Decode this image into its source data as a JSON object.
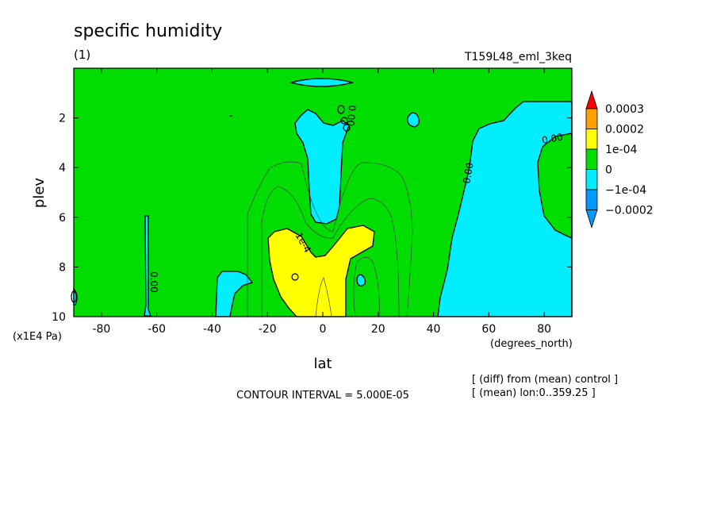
{
  "title": "specific humidity",
  "panel_label": "(1)",
  "experiment": "T159L48_eml_3keq",
  "contour_interval": "CONTOUR INTERVAL = 5.000E-05",
  "notes": [
    "[ (diff) from (mean) control ]",
    "[ (mean) lon:0..359.25 ]"
  ],
  "contour_labels": [
    "0.00",
    "0.00",
    "0.00",
    "0.00",
    "1e-4"
  ],
  "colors": {
    "green": "#00dd00",
    "cyan": "#00eeff",
    "yellow": "#ffff00",
    "orange": "#ffa000",
    "red": "#ff0000",
    "blue": "#0099ff"
  },
  "chart_data": {
    "type": "heatmap",
    "x": {
      "label": "lat",
      "unit": "(degrees_north)",
      "range": [
        -90,
        90
      ],
      "ticks": [
        -80,
        -60,
        -40,
        -20,
        0,
        20,
        40,
        60,
        80
      ]
    },
    "y": {
      "label": "plev",
      "unit": "(x1E4 Pa)",
      "range": [
        0,
        10
      ],
      "inverted": true,
      "ticks": [
        2,
        4,
        6,
        8,
        10
      ]
    },
    "colorbar": {
      "labels": [
        "0.0003",
        "0.0002",
        "1e-04",
        "0",
        "−1e-04",
        "−0.0002"
      ],
      "levels": [
        {
          "range": "> 0.0003",
          "color": "#ff0000"
        },
        {
          "range": "0.0002 to 0.0003",
          "color": "#ffa000"
        },
        {
          "range": "1e-04 to 0.0002",
          "color": "#ffff00"
        },
        {
          "range": "0 to 1e-04",
          "color": "#00dd00"
        },
        {
          "range": "-1e-04 to 0",
          "color": "#00eeff"
        },
        {
          "range": "-0.0002 to -1e-04",
          "color": "#0099ff"
        },
        {
          "range": "< -0.0002",
          "color": "#0099ff"
        }
      ]
    },
    "regions": [
      {
        "level": "-1e-04 to 0",
        "area": "lat 46 to 90, plev 1.4 to 10"
      },
      {
        "level": "-1e-04 to 0",
        "area": "lat -10 to 8, plev 1.5 to 6.3"
      },
      {
        "level": "-1e-04 to 0",
        "area": "lat -11 to 8, plev 0.5 to 0.8"
      },
      {
        "level": "-1e-04 to 0",
        "area": "lat -64 to -62, plev 6 to 9.8"
      },
      {
        "level": "-1e-04 to 0",
        "area": "lat -38 to -27, plev 8 to 10"
      },
      {
        "level": "1e-04 to 0.0002",
        "area": "lat -19 to 20, plev 6.7 to 10"
      },
      {
        "level": "0 to 1e-04",
        "area": "elsewhere"
      }
    ]
  }
}
